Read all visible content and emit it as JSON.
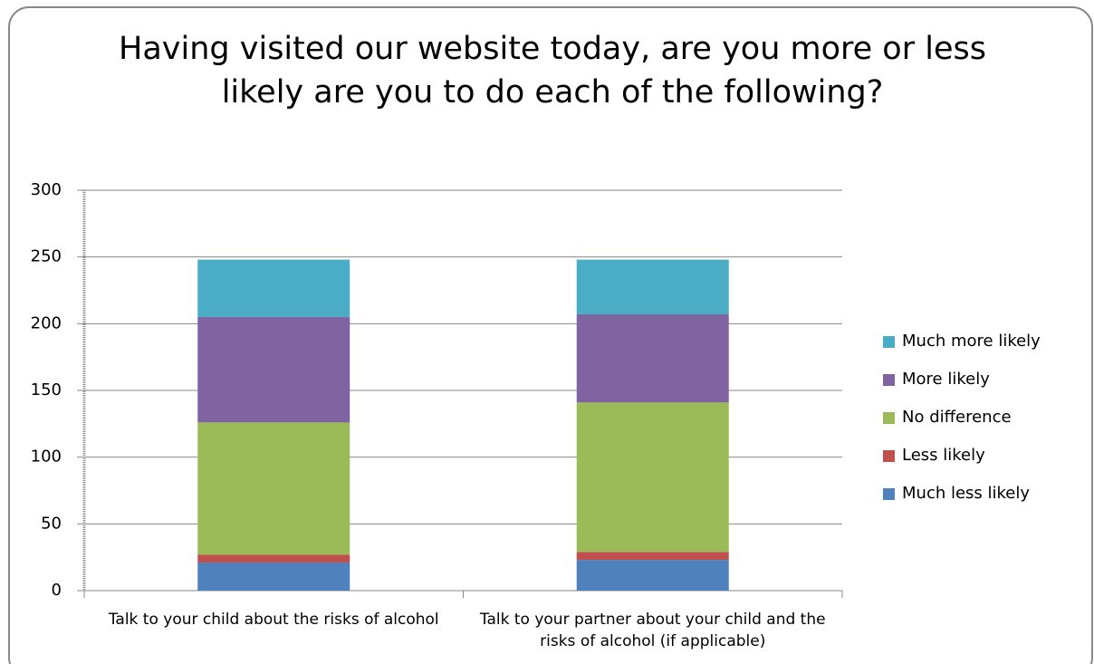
{
  "chart_data": {
    "type": "stacked_bar",
    "title": "Having visited our website today, are you more or less likely are you to do each of the following?",
    "categories": [
      "Talk to your child about the risks of alcohol",
      "Talk to your partner about your child and the risks of alcohol (if applicable)"
    ],
    "series": [
      {
        "name": "Much less likely",
        "color": "#4f81bd",
        "values": [
          21,
          23
        ]
      },
      {
        "name": "Less likely",
        "color": "#c0504d",
        "values": [
          6,
          6
        ]
      },
      {
        "name": "No difference",
        "color": "#9bbb59",
        "values": [
          99,
          112
        ]
      },
      {
        "name": "More likely",
        "color": "#8064a2",
        "values": [
          79,
          66
        ]
      },
      {
        "name": "Much more likely",
        "color": "#4bacc6",
        "values": [
          43,
          41
        ]
      }
    ],
    "ylim": [
      0,
      300
    ],
    "yticks": [
      0,
      50,
      100,
      150,
      200,
      250,
      300
    ],
    "grid": true,
    "legend": "right"
  }
}
